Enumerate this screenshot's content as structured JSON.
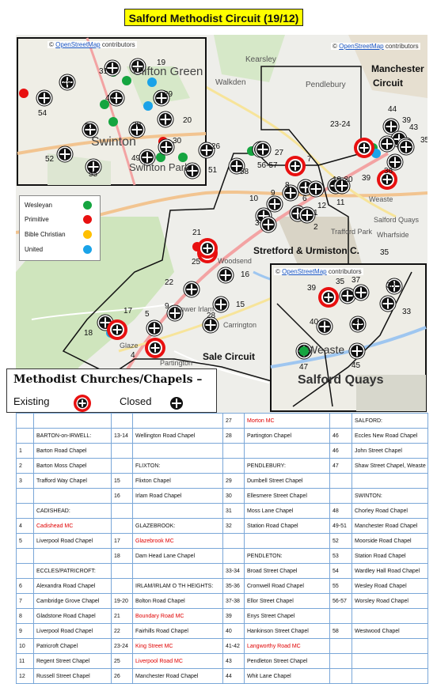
{
  "title": "Salford Methodist Circuit (19/12)",
  "attribution": {
    "copy": "©",
    "link": "OpenStreetMap",
    "suffix": " contributors"
  },
  "legend": [
    {
      "label": "Wesleyan",
      "color": "#15a540"
    },
    {
      "label": "Primitive",
      "color": "#e81010"
    },
    {
      "label": "Bible Christian",
      "color": "#ffbf00"
    },
    {
      "label": "United",
      "color": "#1aa3e8"
    }
  ],
  "key": {
    "title": "Methodist Churches/Chapels –",
    "existing": "Existing",
    "closed": "Closed"
  },
  "circuits": [
    {
      "name": "Manchester",
      "name2": "Circuit"
    },
    {
      "name": "Stretford & Urmiston C."
    },
    {
      "name": "Sale Circuit"
    }
  ],
  "places": [
    "Kearsley",
    "Walkden",
    "Clifton Green",
    "Pendlebury",
    "Swinton",
    "Swinton Park",
    "Weaste",
    "Salford Quays",
    "Trafford Park",
    "Wharfside",
    "Woodsend",
    "Lower Irlam",
    "Carrington",
    "Glaze",
    "Partington",
    "Salford Quays",
    "Weaste"
  ],
  "markers_main": [
    {
      "n": "58",
      "type": "closed"
    },
    {
      "n": "56-57",
      "type": "closed"
    },
    {
      "n": "27",
      "type": "closed"
    },
    {
      "n": "7",
      "type": "existing"
    },
    {
      "n": "19-20",
      "type": "closed"
    },
    {
      "n": "23-24",
      "type": "existing"
    },
    {
      "n": "44",
      "type": "closed"
    },
    {
      "n": "39",
      "type": "closed"
    },
    {
      "n": "43",
      "type": "closed"
    },
    {
      "n": "35",
      "type": "closed"
    },
    {
      "n": "36",
      "type": "closed"
    },
    {
      "n": "39",
      "type": "existing"
    },
    {
      "n": "10",
      "type": "closed"
    },
    {
      "n": "9",
      "type": "closed"
    },
    {
      "n": "8",
      "type": "closed"
    },
    {
      "n": "6",
      "type": "closed"
    },
    {
      "n": "12",
      "type": "closed"
    },
    {
      "n": "11",
      "type": "closed"
    },
    {
      "n": "1",
      "type": "closed"
    },
    {
      "n": "2",
      "type": "closed"
    },
    {
      "n": "3",
      "type": "closed"
    },
    {
      "n": "21",
      "type": "existing"
    },
    {
      "n": "25",
      "type": "existing"
    },
    {
      "n": "22",
      "type": "closed"
    },
    {
      "n": "16",
      "type": "closed"
    },
    {
      "n": "15",
      "type": "closed"
    },
    {
      "n": "9",
      "type": "closed"
    },
    {
      "n": "5",
      "type": "closed"
    },
    {
      "n": "28",
      "type": "closed"
    },
    {
      "n": "17",
      "type": "closed"
    },
    {
      "n": "18",
      "type": "existing"
    },
    {
      "n": "4",
      "type": "existing"
    },
    {
      "n": "26",
      "type": "closed"
    },
    {
      "n": "35",
      "type": "closed"
    }
  ],
  "markers_inset_left": [
    {
      "n": "19"
    },
    {
      "n": "31"
    },
    {
      "n": "48"
    },
    {
      "n": "54"
    },
    {
      "n": "49"
    },
    {
      "n": "29"
    },
    {
      "n": "20"
    },
    {
      "n": "53"
    },
    {
      "n": "30"
    },
    {
      "n": "30"
    },
    {
      "n": "49"
    },
    {
      "n": "52"
    },
    {
      "n": "55"
    },
    {
      "n": "51"
    }
  ],
  "markers_inset_right": [
    {
      "n": "39"
    },
    {
      "n": "35"
    },
    {
      "n": "37"
    },
    {
      "n": "38"
    },
    {
      "n": "40"
    },
    {
      "n": "36"
    },
    {
      "n": "33"
    },
    {
      "n": "47"
    },
    {
      "n": "45"
    }
  ],
  "table": [
    [
      {
        "t": ""
      },
      {
        "t": ""
      },
      {
        "t": ""
      },
      {
        "t": ""
      },
      {
        "t": "27"
      },
      {
        "t": "Morton MC",
        "red": true
      },
      {
        "t": ""
      },
      {
        "t": "SALFORD:"
      }
    ],
    [
      {
        "t": ""
      },
      {
        "t": "BARTON-on-IRWELL:"
      },
      {
        "t": "13-14"
      },
      {
        "t": "Wellington Road Chapel"
      },
      {
        "t": "28"
      },
      {
        "t": "Partington Chapel"
      },
      {
        "t": "46"
      },
      {
        "t": "Eccles New Road Chapel"
      }
    ],
    [
      {
        "t": "1"
      },
      {
        "t": "Barton Road Chapel"
      },
      {
        "t": ""
      },
      {
        "t": ""
      },
      {
        "t": ""
      },
      {
        "t": ""
      },
      {
        "t": "46"
      },
      {
        "t": "John Street Chapel"
      }
    ],
    [
      {
        "t": "2"
      },
      {
        "t": "Barton Moss Chapel"
      },
      {
        "t": ""
      },
      {
        "t": "FLIXTON:"
      },
      {
        "t": ""
      },
      {
        "t": "PENDLEBURY:"
      },
      {
        "t": "47"
      },
      {
        "t": "Shaw Street Chapel, Weaste"
      }
    ],
    [
      {
        "t": "3"
      },
      {
        "t": "Trafford Way Chapel"
      },
      {
        "t": "15"
      },
      {
        "t": "Flixton Chapel"
      },
      {
        "t": "29"
      },
      {
        "t": "Dumbell Street Chapel"
      },
      {
        "t": ""
      },
      {
        "t": ""
      }
    ],
    [
      {
        "t": ""
      },
      {
        "t": ""
      },
      {
        "t": "16"
      },
      {
        "t": "Irlam Road Chapel"
      },
      {
        "t": "30"
      },
      {
        "t": "Ellesmere Street Chapel"
      },
      {
        "t": ""
      },
      {
        "t": "SWINTON:"
      }
    ],
    [
      {
        "t": ""
      },
      {
        "t": "CADISHEAD:"
      },
      {
        "t": ""
      },
      {
        "t": ""
      },
      {
        "t": "31"
      },
      {
        "t": "Moss Lane Chapel"
      },
      {
        "t": "48"
      },
      {
        "t": "Chorley Road Chapel"
      }
    ],
    [
      {
        "t": "4"
      },
      {
        "t": "Cadishead  MC",
        "red": true
      },
      {
        "t": ""
      },
      {
        "t": "GLAZEBROOK:"
      },
      {
        "t": "32"
      },
      {
        "t": "Station Road Chapel"
      },
      {
        "t": "49-51"
      },
      {
        "t": "Manchester Road Chapel"
      }
    ],
    [
      {
        "t": "5"
      },
      {
        "t": "Liverpool Road Chapel"
      },
      {
        "t": "17"
      },
      {
        "t": "Glazebrook MC",
        "red": true
      },
      {
        "t": ""
      },
      {
        "t": ""
      },
      {
        "t": "52"
      },
      {
        "t": "Moorside Road Chapel"
      }
    ],
    [
      {
        "t": ""
      },
      {
        "t": ""
      },
      {
        "t": "18"
      },
      {
        "t": "Dam Head Lane Chapel"
      },
      {
        "t": ""
      },
      {
        "t": "PENDLETON:"
      },
      {
        "t": "53"
      },
      {
        "t": "Station Road Chapel"
      }
    ],
    [
      {
        "t": ""
      },
      {
        "t": "ECCLES/PATRICROFT:"
      },
      {
        "t": ""
      },
      {
        "t": ""
      },
      {
        "t": "33-34"
      },
      {
        "t": "Broad Street Chapel"
      },
      {
        "t": "54"
      },
      {
        "t": "Wardley Hall Road Chapel"
      }
    ],
    [
      {
        "t": "6"
      },
      {
        "t": "Alexandra Road Chapel"
      },
      {
        "t": ""
      },
      {
        "t": "IRLAM/IRLAM O TH HEIGHTS:"
      },
      {
        "t": "35-36"
      },
      {
        "t": "Cromwell Road Chapel"
      },
      {
        "t": "55"
      },
      {
        "t": "Wesley Road Chapel"
      }
    ],
    [
      {
        "t": "7"
      },
      {
        "t": "Cambridge Grove Chapel"
      },
      {
        "t": "19-20"
      },
      {
        "t": "Bolton Road Chapel"
      },
      {
        "t": "37-38"
      },
      {
        "t": "Ellor Street Chapel"
      },
      {
        "t": "56-57"
      },
      {
        "t": "Worsley Road Chapel"
      }
    ],
    [
      {
        "t": "8"
      },
      {
        "t": "Gladstone Road Chapel"
      },
      {
        "t": "21"
      },
      {
        "t": "Boundary Road MC",
        "red": true
      },
      {
        "t": "39"
      },
      {
        "t": "Enys Street Chapel"
      },
      {
        "t": ""
      },
      {
        "t": ""
      }
    ],
    [
      {
        "t": "9"
      },
      {
        "t": "Liverpool Road Chapel"
      },
      {
        "t": "22"
      },
      {
        "t": "Fairhills Road Chapel"
      },
      {
        "t": "40"
      },
      {
        "t": "Hankinson Street Chapel"
      },
      {
        "t": "58"
      },
      {
        "t": "Westwood Chapel"
      }
    ],
    [
      {
        "t": "10"
      },
      {
        "t": "Patricroft Chapel"
      },
      {
        "t": "23-24"
      },
      {
        "t": "King Street MC",
        "red": true
      },
      {
        "t": "41-42"
      },
      {
        "t": "Langworthy Road MC",
        "red": true
      },
      {
        "t": ""
      },
      {
        "t": ""
      }
    ],
    [
      {
        "t": "11"
      },
      {
        "t": "Regent Street Chapel"
      },
      {
        "t": "25"
      },
      {
        "t": "Liverpool Road  MC",
        "red": true
      },
      {
        "t": "43"
      },
      {
        "t": "Pendleton Street Chapel"
      },
      {
        "t": ""
      },
      {
        "t": ""
      }
    ],
    [
      {
        "t": "12"
      },
      {
        "t": "Russell Street Chapel"
      },
      {
        "t": "26"
      },
      {
        "t": "Manchester Road Chapel"
      },
      {
        "t": "44"
      },
      {
        "t": "Whit Lane Chapel"
      },
      {
        "t": ""
      },
      {
        "t": ""
      }
    ]
  ]
}
